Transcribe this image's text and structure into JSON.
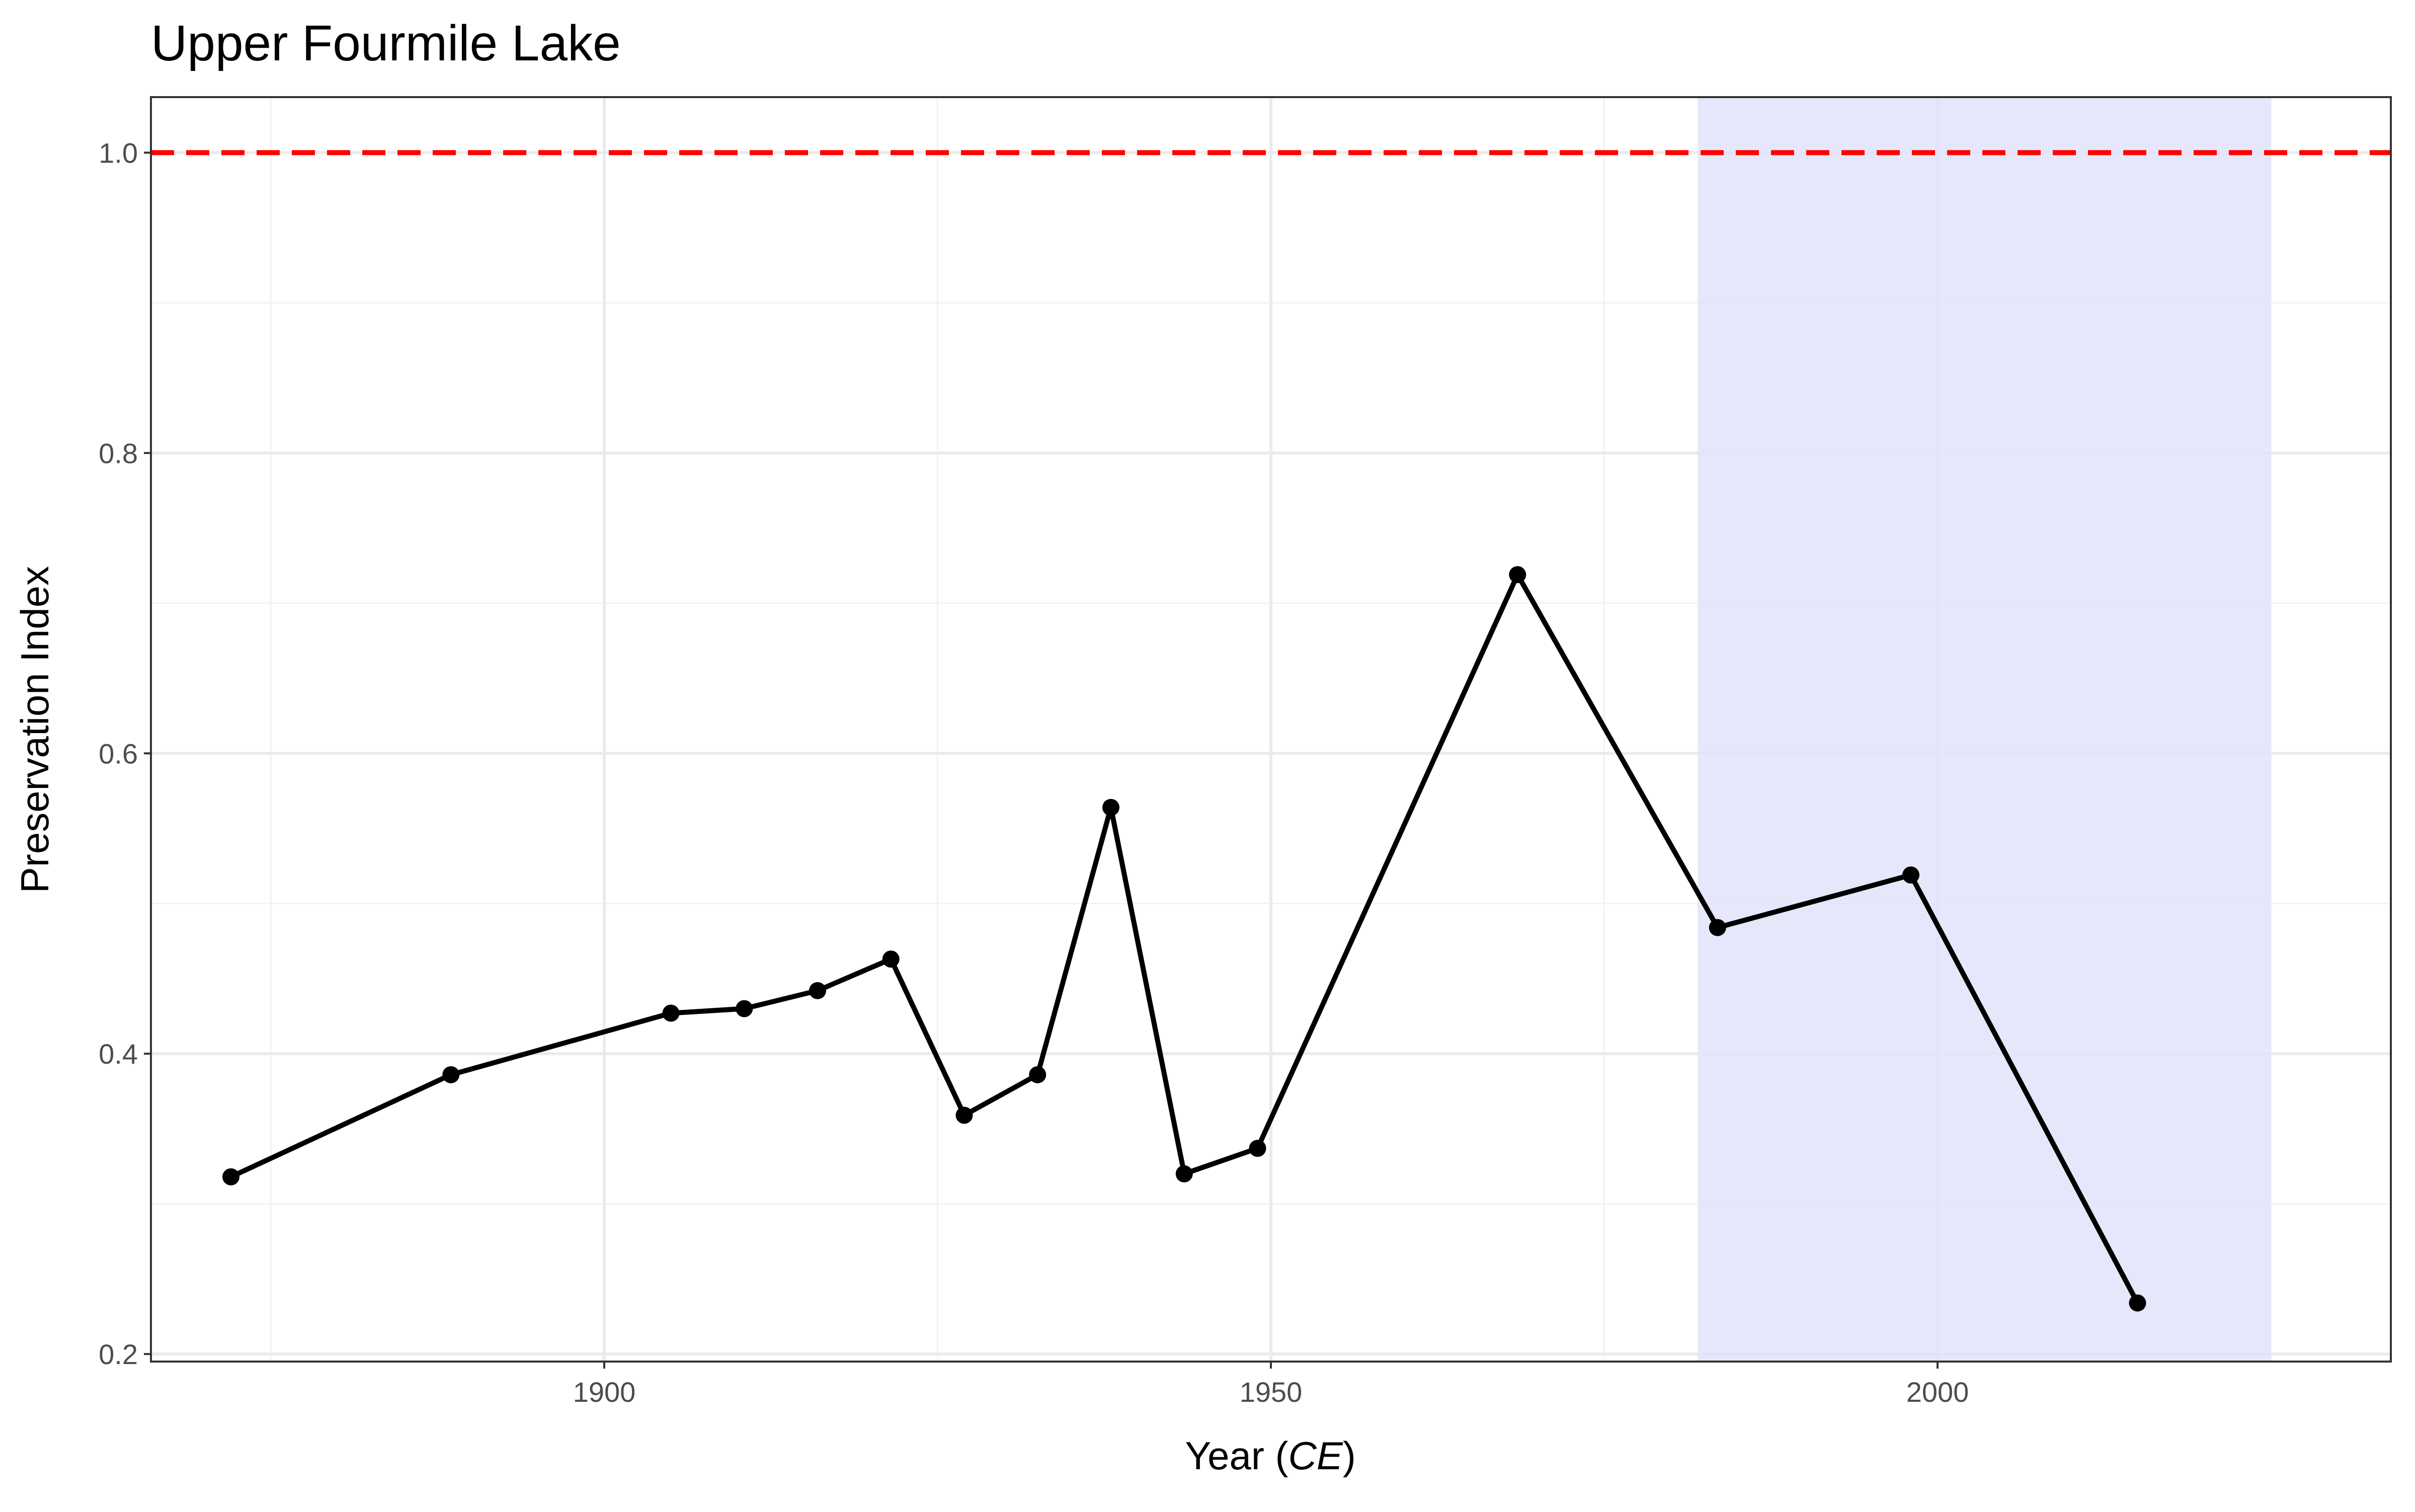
{
  "chart_data": {
    "type": "line",
    "title": "Upper Fourmile Lake",
    "xlabel_prefix": "Year (",
    "xlabel_italic": "CE",
    "xlabel_suffix": ")",
    "ylabel": "Preservation Index",
    "xlim": [
      1866,
      2034
    ],
    "ylim": [
      0.195,
      1.037
    ],
    "x_ticks": [
      1900,
      1950,
      2000
    ],
    "x_tick_labels": [
      "1900",
      "1950",
      "2000"
    ],
    "y_ticks": [
      0.2,
      0.4,
      0.6,
      0.8,
      1.0
    ],
    "y_tick_labels": [
      "0.2",
      "0.4",
      "0.6",
      "0.8",
      "1.0"
    ],
    "grid": true,
    "legend": "none",
    "reference_line": {
      "y": 1.0,
      "color": "#ff0000",
      "style": "dashed"
    },
    "shaded_region": {
      "x": [
        1982,
        2025
      ],
      "color": "#e3e3fb"
    },
    "series": [
      {
        "color": "#000000",
        "points": [
          {
            "x": 1872,
            "y": 0.318
          },
          {
            "x": 1888.5,
            "y": 0.386
          },
          {
            "x": 1905,
            "y": 0.427
          },
          {
            "x": 1910.5,
            "y": 0.43
          },
          {
            "x": 1916,
            "y": 0.442
          },
          {
            "x": 1921.5,
            "y": 0.463
          },
          {
            "x": 1927,
            "y": 0.359
          },
          {
            "x": 1932.5,
            "y": 0.386
          },
          {
            "x": 1938,
            "y": 0.564
          },
          {
            "x": 1943.5,
            "y": 0.32
          },
          {
            "x": 1949,
            "y": 0.337
          },
          {
            "x": 1968.5,
            "y": 0.719
          },
          {
            "x": 1983.5,
            "y": 0.484
          },
          {
            "x": 1998,
            "y": 0.519
          },
          {
            "x": 2015,
            "y": 0.234
          }
        ]
      }
    ]
  }
}
